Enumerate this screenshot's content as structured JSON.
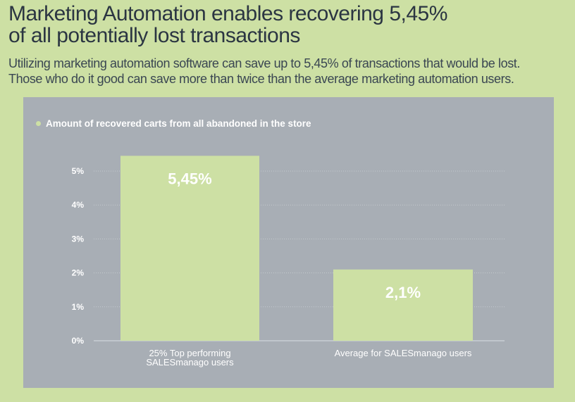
{
  "title_line1": "Marketing Automation enables recovering 5,45%",
  "title_line2": "of all potentially lost transactions",
  "subtitle_line1": "Utilizing marketing automation software can save up to 5,45% of transactions that would be lost.",
  "subtitle_line2": "Those who do it good can save more than twice than the average marketing automation users.",
  "colors": {
    "background": "#cde0a4",
    "panel": "#a8aeb5",
    "bar": "#cde0a4",
    "text": "#ffffff"
  },
  "chart_data": {
    "type": "bar",
    "legend": "Amount of recovered carts from all abandoned in the store",
    "categories": [
      [
        "25% Top performing",
        "SALESmanago users"
      ],
      [
        "Average for SALESmanago users"
      ]
    ],
    "values": [
      5.45,
      2.1
    ],
    "data_labels": [
      "5,45%",
      "2,1%"
    ],
    "yticks": [
      0,
      1,
      2,
      3,
      4,
      5
    ],
    "ytick_labels": [
      "0%",
      "1%",
      "2%",
      "3%",
      "4%",
      "5%"
    ],
    "ylim": [
      0,
      5.45
    ],
    "grid": true,
    "legend_position": "top-left"
  }
}
